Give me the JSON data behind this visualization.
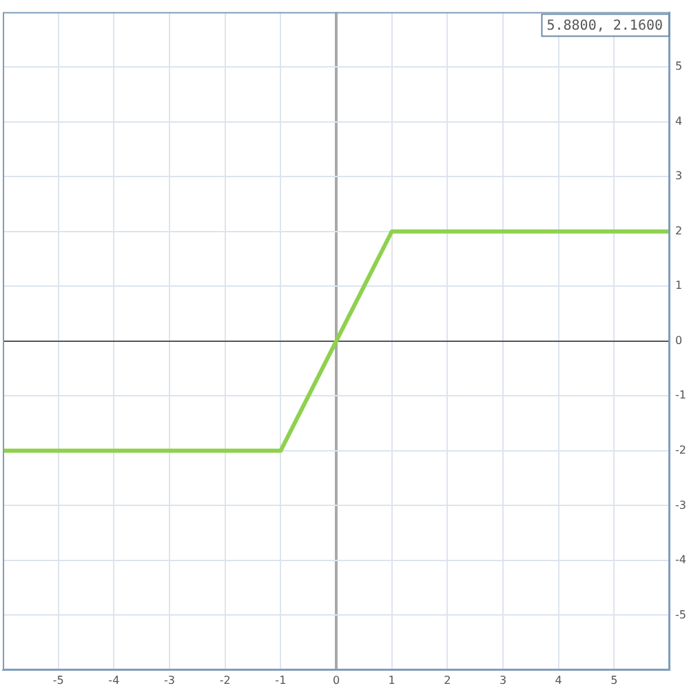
{
  "chart_data": {
    "type": "line",
    "x": [
      -6,
      -1,
      1,
      6
    ],
    "values": [
      -2,
      -2,
      2,
      2
    ],
    "color": "#8fd14f",
    "xlim": [
      -6,
      6
    ],
    "ylim": [
      -6,
      6
    ],
    "xticks": [
      -5,
      -4,
      -3,
      -2,
      -1,
      0,
      1,
      2,
      3,
      4,
      5
    ],
    "yticks": [
      -5,
      -4,
      -3,
      -2,
      -1,
      0,
      1,
      2,
      3,
      4,
      5
    ],
    "grid": true,
    "marker": "none",
    "annotations": [
      "5.8800, 2.1600"
    ]
  }
}
